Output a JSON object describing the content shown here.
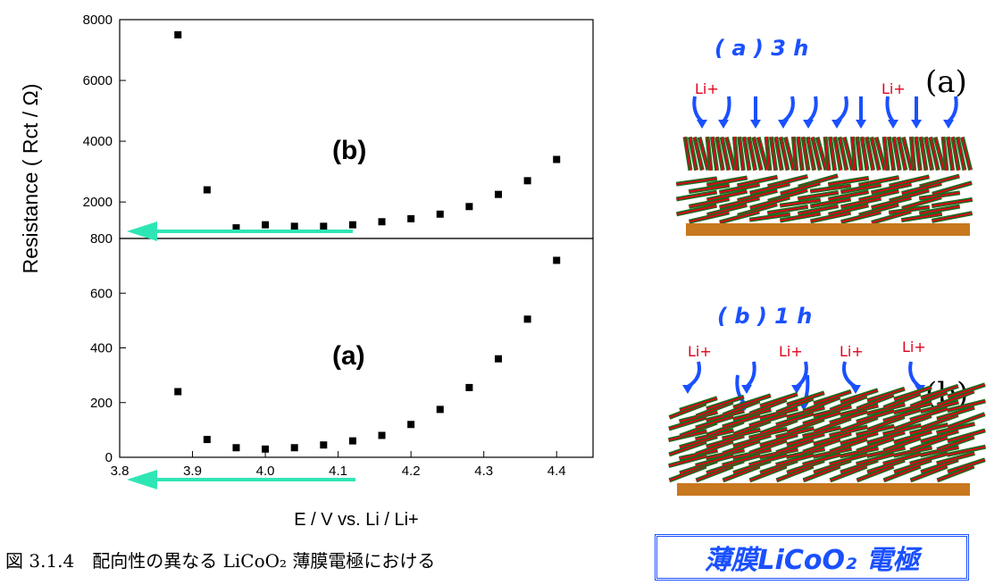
{
  "chart_data": {
    "type": "scatter",
    "xlabel": "E / V  vs.  Li / Li+",
    "ylabel": "Resistance  ( Rct / Ω)",
    "x_ticks": [
      "3.8",
      "3.9",
      "4.0",
      "4.1",
      "4.2",
      "4.3",
      "4.4"
    ],
    "xlim": [
      3.8,
      4.45
    ],
    "panels": [
      {
        "label": "(b)",
        "ylim": [
          800,
          8000
        ],
        "y_ticks": [
          "800",
          "2000",
          "4000",
          "6000",
          "8000"
        ],
        "x": [
          3.88,
          3.92,
          3.96,
          4.0,
          4.04,
          4.08,
          4.12,
          4.16,
          4.2,
          4.24,
          4.28,
          4.32,
          4.36,
          4.4
        ],
        "values": [
          7500,
          2400,
          1150,
          1250,
          1200,
          1200,
          1250,
          1350,
          1450,
          1600,
          1850,
          2250,
          2700,
          3400
        ]
      },
      {
        "label": "(a)",
        "ylim": [
          0,
          800
        ],
        "y_ticks": [
          "0",
          "200",
          "400",
          "600"
        ],
        "x": [
          3.88,
          3.92,
          3.96,
          4.0,
          4.04,
          4.08,
          4.12,
          4.16,
          4.2,
          4.24,
          4.28,
          4.32,
          4.36,
          4.4
        ],
        "values": [
          240,
          65,
          35,
          30,
          35,
          45,
          60,
          80,
          120,
          175,
          255,
          360,
          505,
          720
        ]
      }
    ],
    "marker_color": "#000000",
    "arrow_color": "#2ee6b4",
    "grid": false
  },
  "caption": "図 3.1.4　配向性の異なる LiCoO₂ 薄膜電極における",
  "diagram_a": {
    "title": "( a ) 3 h",
    "side_label": "(a)",
    "ion_label": "Li+"
  },
  "diagram_b": {
    "title": "( b ) 1 h",
    "side_label": "(b)",
    "ion_label": "Li+"
  },
  "banner": "薄膜LiCoO₂ 電極",
  "colors": {
    "accent": "#1a50ff",
    "layer_red": "#e0001b",
    "layer_green": "#1d6b1d",
    "substrate": "#c8781e"
  }
}
